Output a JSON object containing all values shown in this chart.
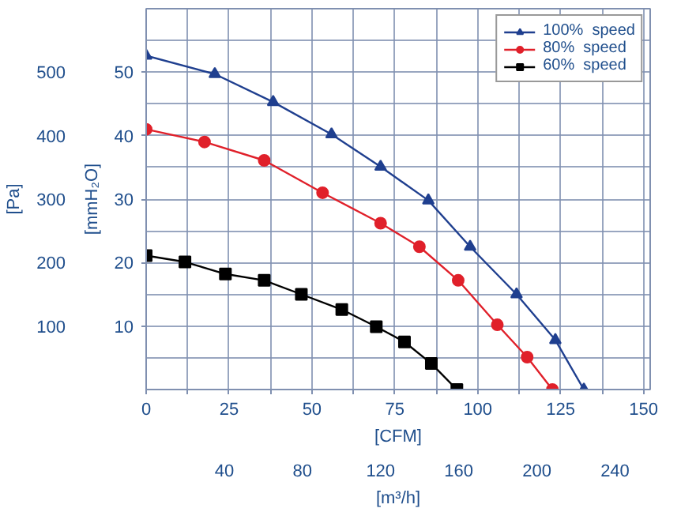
{
  "chart_data": {
    "type": "line",
    "xlabel": "[CFM]",
    "x2label": "[m³/h]",
    "ylabel": "[Pa]",
    "y2label": "[mmH₂O]",
    "xlim": [
      0,
      152
    ],
    "xticks": [
      0,
      {
        "value": 12.5,
        "label": null
      },
      25,
      {
        "value": 37.5,
        "label": null
      },
      50,
      {
        "value": 62.5,
        "label": null
      },
      75,
      {
        "value": 87.5,
        "label": null
      },
      100,
      {
        "value": 112.5,
        "label": null
      },
      125,
      {
        "value": 137.5,
        "label": null
      },
      150
    ],
    "x2lim": [
      0,
      258
    ],
    "x2ticks": [
      40,
      80,
      120,
      160,
      200,
      240
    ],
    "ylim": [
      0,
      600
    ],
    "yticks": [
      {
        "value": 50,
        "label": null
      },
      100,
      {
        "value": 150,
        "label": null
      },
      200,
      {
        "value": 250,
        "label": null
      },
      300,
      {
        "value": 350,
        "label": null
      },
      400,
      {
        "value": 450,
        "label": null
      },
      500,
      {
        "value": 550,
        "label": null
      },
      {
        "value": 600,
        "label": null
      }
    ],
    "y2lim": [
      0,
      60
    ],
    "y2ticks": [
      10,
      20,
      30,
      40,
      50
    ],
    "grid": true,
    "legend": "top right",
    "series": [
      {
        "name": "100%  speed",
        "color": "#1f3f8f",
        "marker": "triangle",
        "x": [
          0,
          20.7,
          38.3,
          55.9,
          70.7,
          85.1,
          97.7,
          111.7,
          123.4,
          132
        ],
        "values": [
          526,
          497,
          453,
          402,
          351,
          298,
          225,
          150,
          78,
          0
        ]
      },
      {
        "name": "80%  speed",
        "color": "#e0202a",
        "marker": "circle",
        "x": [
          0,
          17.6,
          35.6,
          53.2,
          70.7,
          82.4,
          94.1,
          105.9,
          114.9,
          122.5
        ],
        "values": [
          410,
          390,
          361,
          310,
          262,
          225,
          172,
          102,
          51,
          0
        ]
      },
      {
        "name": "60%  speed",
        "color": "#000000",
        "marker": "square",
        "x": [
          0,
          11.7,
          23.9,
          35.6,
          46.8,
          59,
          69.4,
          77.9,
          86,
          93.7
        ],
        "values": [
          211,
          201,
          182,
          172,
          150,
          126,
          99,
          75,
          41,
          0
        ]
      }
    ]
  }
}
